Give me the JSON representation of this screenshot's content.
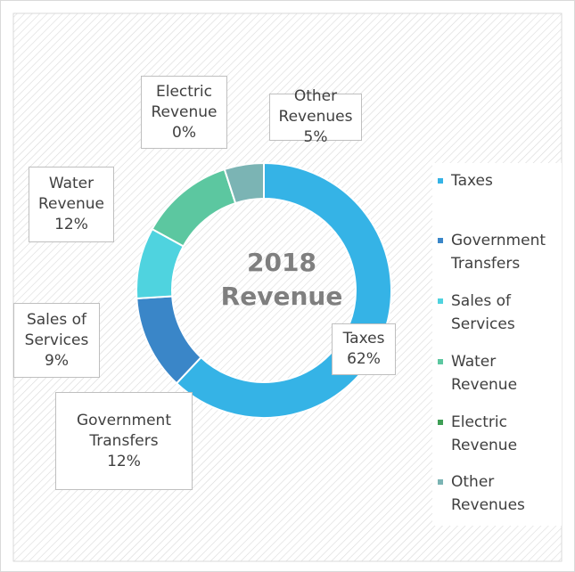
{
  "chart_data": {
    "type": "donut",
    "title": "2018 Revenue",
    "categories": [
      "Taxes",
      "Government Transfers",
      "Sales of Services",
      "Water Revenue",
      "Electric Revenue",
      "Other Revenues"
    ],
    "values": [
      62,
      12,
      9,
      12,
      0,
      5
    ],
    "value_labels": [
      "62%",
      "12%",
      "9%",
      "12%",
      "0%",
      "5%"
    ],
    "colors": [
      "#35b3e6",
      "#3a86c8",
      "#4fd3df",
      "#5cc7a0",
      "#3e9e55",
      "#7bb4b4"
    ],
    "legend": "right"
  }
}
